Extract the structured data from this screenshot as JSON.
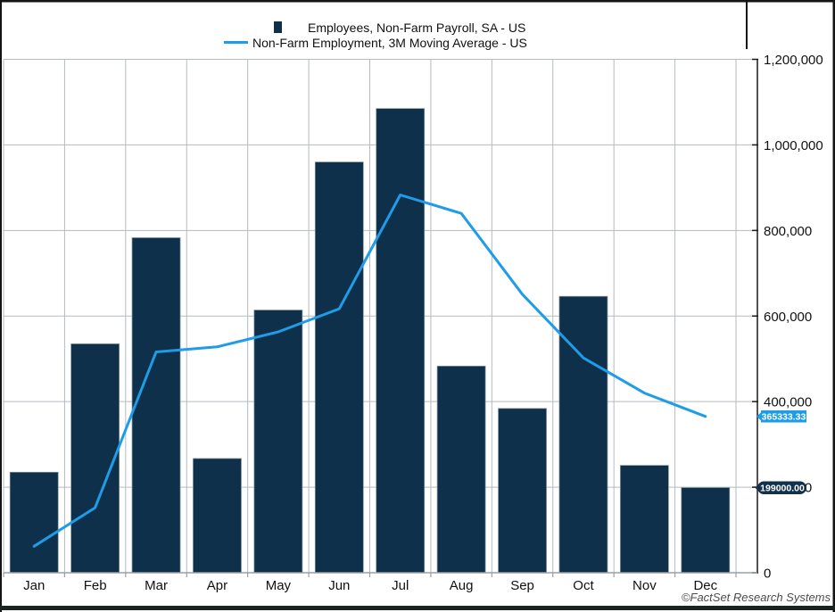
{
  "chart_data": {
    "type": "bar",
    "title": "",
    "categories": [
      "Jan",
      "Feb",
      "Mar",
      "Apr",
      "May",
      "Jun",
      "Jul",
      "Aug",
      "Sep",
      "Oct",
      "Nov",
      "Dec"
    ],
    "series": [
      {
        "name": "Employees, Non-Farm Payroll, SA - US",
        "type": "bar",
        "color": "#0e304a",
        "values": [
          235000,
          535000,
          783000,
          267000,
          614000,
          960000,
          1085000,
          483000,
          384000,
          646000,
          251000,
          199000
        ]
      },
      {
        "name": "Non-Farm Employment, 3M Moving Average - US",
        "type": "line",
        "color": "#1e9ce8",
        "values": [
          62000,
          152000,
          516000,
          528000,
          563000,
          617000,
          883000,
          840000,
          651000,
          502000,
          420000,
          365333.33
        ]
      }
    ],
    "ylim": [
      0,
      1200000
    ],
    "y_tick_values": [
      0,
      200000,
      400000,
      600000,
      800000,
      1000000,
      1200000
    ],
    "y_tick_labels": [
      "0",
      "200,000",
      "400,000",
      "600,000",
      "800,000",
      "1,000,000",
      "1,200,000"
    ],
    "y_axis_side": "right",
    "grid": true,
    "legend_position": "top"
  },
  "legend": {
    "bar_label": "Employees, Non-Farm Payroll, SA - US",
    "line_label": "Non-Farm Employment, 3M Moving Average - US"
  },
  "callouts": {
    "line_last_value": "365333.33",
    "bar_last_value": "199000.00"
  },
  "footer": {
    "copyright": "©FactSet Research Systems"
  },
  "colors": {
    "bar_fill": "#0e304a",
    "bar_edge": "#7f93a0",
    "line_stroke": "#1e9ce8",
    "grid_line": "#b5bac0",
    "y_axis_line": "#1a1a1a",
    "x_axis_line": "#9aa0a6",
    "callout_line_bg": "#1e9ce8",
    "callout_bar_bg": "#12314d",
    "frame": "#141414",
    "frame_bottom": "#1a231d"
  }
}
